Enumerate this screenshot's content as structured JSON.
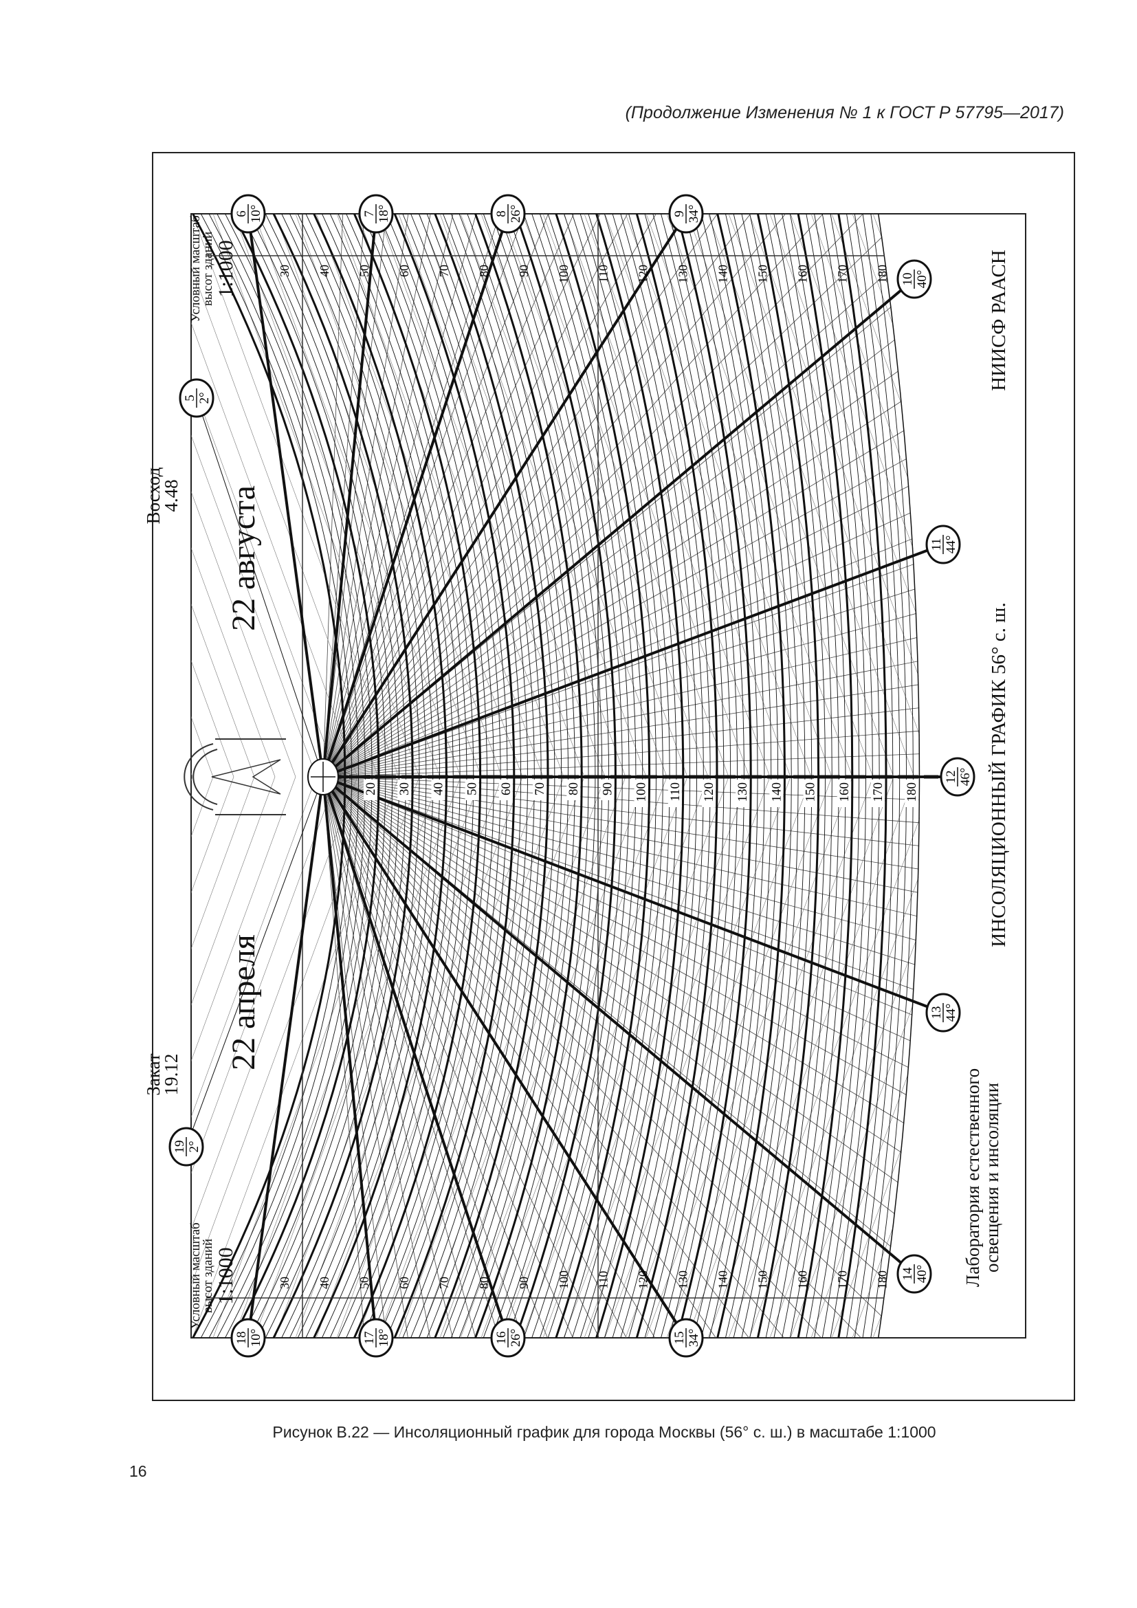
{
  "header": "(Продолжение Изменения № 1 к ГОСТ Р 57795—2017)",
  "caption": "Рисунок В.22 — Инсоляционный график для города Москвы (56° с. ш.) в масштабе 1:1000",
  "page_number": "16",
  "chart": {
    "title": "ИНСОЛЯЦИОННЫЙ ГРАФИК 56° с. ш.",
    "org": "НИИСФ РААСН",
    "lab_line1": "Лаборатория естественного",
    "lab_line2": "освещения и инсоляции",
    "sunrise_label": "Восход",
    "sunrise_time": "4.48",
    "sunset_label": "Закат",
    "sunset_time": "19.12",
    "date_top": "22 августа",
    "date_bottom": "22 апреля",
    "scale_line1": "Условный масштаб",
    "scale_line2": "высот зданий",
    "scale_value": "1:1000",
    "hour_markers": [
      {
        "hour": "5",
        "alt": "2°"
      },
      {
        "hour": "6",
        "alt": "10°"
      },
      {
        "hour": "7",
        "alt": "18°"
      },
      {
        "hour": "8",
        "alt": "26°"
      },
      {
        "hour": "9",
        "alt": "34°"
      },
      {
        "hour": "10",
        "alt": "40°"
      },
      {
        "hour": "11",
        "alt": "44°"
      },
      {
        "hour": "12",
        "alt": "46°"
      },
      {
        "hour": "13",
        "alt": "44°"
      },
      {
        "hour": "14",
        "alt": "40°"
      },
      {
        "hour": "15",
        "alt": "34°"
      },
      {
        "hour": "16",
        "alt": "26°"
      },
      {
        "hour": "17",
        "alt": "18°"
      },
      {
        "hour": "18",
        "alt": "10°"
      },
      {
        "hour": "19",
        "alt": "2°"
      }
    ],
    "axis_heights": [
      "20",
      "30",
      "40",
      "50",
      "60",
      "70",
      "80",
      "90",
      "100",
      "110",
      "120",
      "130",
      "140",
      "150",
      "160",
      "170",
      "180"
    ],
    "edge_heights": [
      "30",
      "40",
      "50",
      "60",
      "70",
      "80",
      "90",
      "100",
      "110",
      "120",
      "130",
      "140",
      "150",
      "160",
      "170",
      "180"
    ]
  }
}
